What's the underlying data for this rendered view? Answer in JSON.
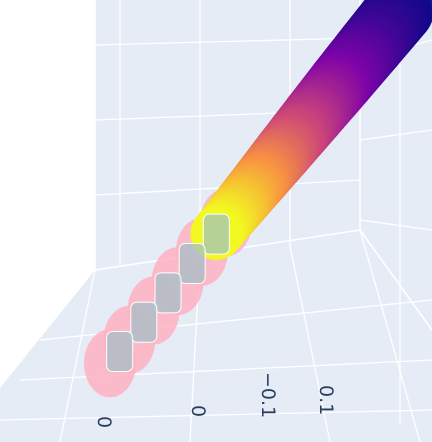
{
  "chart_data": {
    "type": "scatter",
    "subtype": "3d",
    "title": "",
    "axes": {
      "x": {
        "label": "",
        "ticks": [
          "0.1",
          "−0.1",
          "0"
        ],
        "range": [
          -0.15,
          0.15
        ]
      },
      "z": {
        "label": "",
        "ticks": [
          "0"
        ]
      }
    },
    "grid": true,
    "legend": "none",
    "series": [
      {
        "type": "scatter3d-colored",
        "colorscale": [
          "#0d0887",
          "#7e03a8",
          "#cc4778",
          "#f89540",
          "#f0f921"
        ],
        "marker_opacity": 0.95,
        "points": [
          {
            "x": 0.15,
            "y": 0.0,
            "c": 0.0
          },
          {
            "x": 0.12,
            "y": 0.008,
            "c": 0.1
          },
          {
            "x": 0.09,
            "y": 0.016,
            "c": 0.22
          },
          {
            "x": 0.06,
            "y": 0.026,
            "c": 0.38
          },
          {
            "x": 0.03,
            "y": 0.036,
            "c": 0.55
          },
          {
            "x": 0.005,
            "y": 0.045,
            "c": 0.72
          },
          {
            "x": -0.02,
            "y": 0.052,
            "c": 0.88
          },
          {
            "x": -0.04,
            "y": 0.058,
            "c": 1.0
          }
        ]
      },
      {
        "type": "scatter3d",
        "color": "#ffb1c1",
        "marker_opacity": 0.85,
        "points": [
          {
            "x": -0.03,
            "y": 0.06
          },
          {
            "x": -0.055,
            "y": 0.066
          },
          {
            "x": -0.08,
            "y": 0.072
          },
          {
            "x": -0.105,
            "y": 0.076
          },
          {
            "x": -0.13,
            "y": 0.08
          },
          {
            "x": -0.15,
            "y": 0.082
          }
        ]
      },
      {
        "type": "scatter3d",
        "color": "#9cc0c8",
        "marker_opacity": 0.7,
        "points": [
          {
            "x": -0.04,
            "y": 0.062
          },
          {
            "x": -0.065,
            "y": 0.068
          },
          {
            "x": -0.09,
            "y": 0.073
          },
          {
            "x": -0.115,
            "y": 0.077
          },
          {
            "x": -0.14,
            "y": 0.08
          }
        ]
      }
    ]
  },
  "colors": {
    "paper": "#ffffff",
    "scene_bg": "#e5ecf6",
    "grid": "#ffffff",
    "tick_text": "#2a3f5f"
  }
}
